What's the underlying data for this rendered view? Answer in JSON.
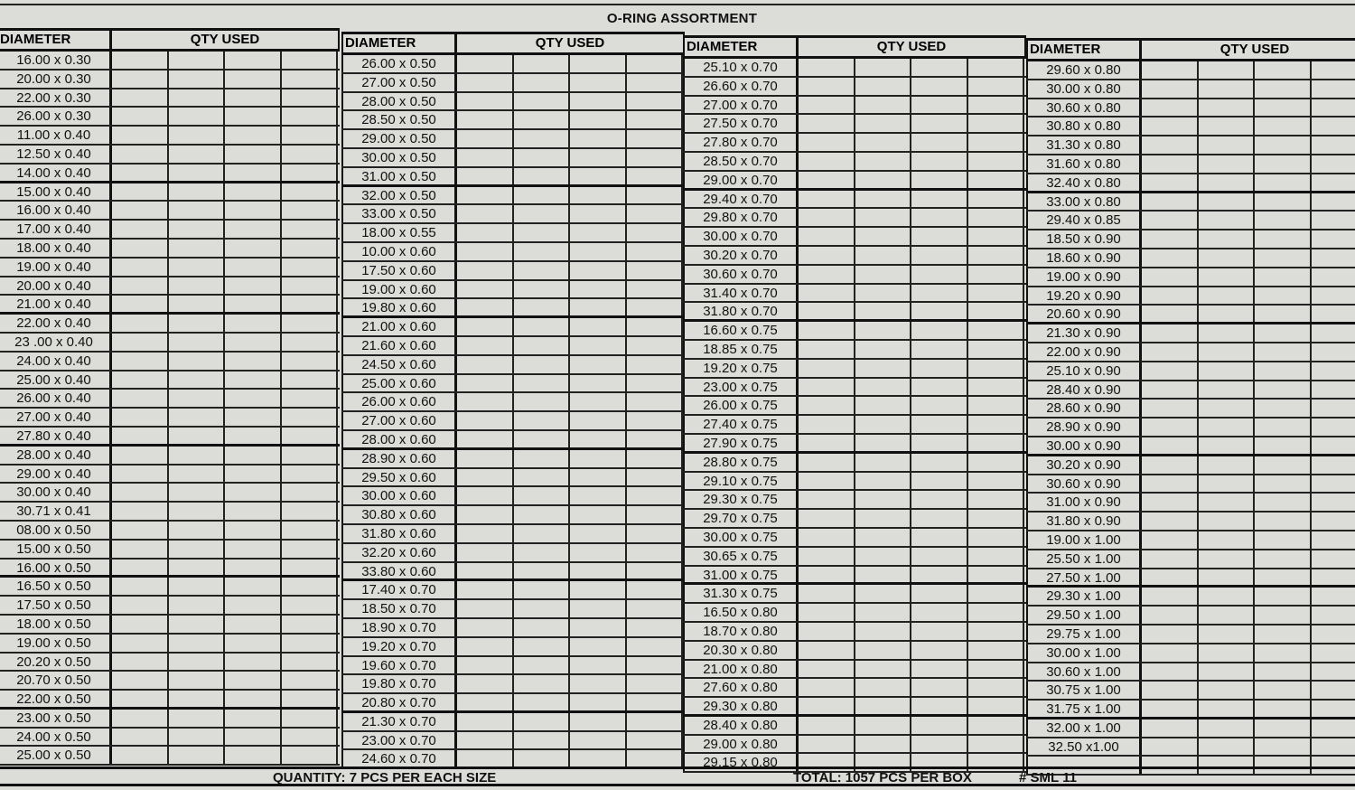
{
  "title": "O-RING ASSORTMENT",
  "header": {
    "diameter": "DIAMETER",
    "qty_used": "QTY USED"
  },
  "columns": [
    [
      "16.00 x 0.30",
      "20.00 x 0.30",
      "22.00 x 0.30",
      "26.00 x 0.30",
      "11.00 x 0.40",
      "12.50 x 0.40",
      "14.00 x 0.40",
      "15.00 x 0.40",
      "16.00 x 0.40",
      "17.00 x 0.40",
      "18.00 x 0.40",
      "19.00 x 0.40",
      "20.00 x 0.40",
      "21.00 x 0.40",
      "22.00 x 0.40",
      "23 .00 x 0.40",
      "24.00 x 0.40",
      "25.00 x 0.40",
      "26.00 x 0.40",
      "27.00 x 0.40",
      "27.80 x 0.40",
      "28.00 x 0.40",
      "29.00 x 0.40",
      "30.00 x 0.40",
      "30.71 x 0.41",
      "08.00 x 0.50",
      "15.00 x 0.50",
      "16.00 x 0.50",
      "16.50 x 0.50",
      "17.50 x 0.50",
      "18.00 x 0.50",
      "19.00 x 0.50",
      "20.20 x 0.50",
      "20.70 x 0.50",
      "22.00 x 0.50",
      "23.00 x 0.50",
      "24.00 x 0.50",
      "25.00 x 0.50"
    ],
    [
      "26.00 x 0.50",
      "27.00 x 0.50",
      "28.00 x 0.50",
      "28.50 x 0.50",
      "29.00 x 0.50",
      "30.00 x 0.50",
      "31.00 x 0.50",
      "32.00 x 0.50",
      "33.00 x 0.50",
      "18.00 x 0.55",
      "10.00 x 0.60",
      "17.50 x 0.60",
      "19.00 x 0.60",
      "19.80 x 0.60",
      "21.00 x 0.60",
      "21.60 x 0.60",
      "24.50 x 0.60",
      "25.00 x 0.60",
      "26.00 x 0.60",
      "27.00 x 0.60",
      "28.00 x 0.60",
      "28.90 x 0.60",
      "29.50 x 0.60",
      "30.00 x 0.60",
      "30.80 x 0.60",
      "31.80 x 0.60",
      "32.20 x 0.60",
      "33.80 x 0.60",
      "17.40 x 0.70",
      "18.50 x 0.70",
      "18.90 x 0.70",
      "19.20 x 0.70",
      "19.60 x 0.70",
      "19.80 x 0.70",
      "20.80 x 0.70",
      "21.30 x 0.70",
      "23.00 x 0.70",
      "24.60 x 0.70"
    ],
    [
      "25.10 x 0.70",
      "26.60 x 0.70",
      "27.00 x 0.70",
      "27.50 x 0.70",
      "27.80 x 0.70",
      "28.50 x 0.70",
      "29.00 x 0.70",
      "29.40 x 0.70",
      "29.80 x 0.70",
      "30.00 x 0.70",
      "30.20 x 0.70",
      "30.60 x 0.70",
      "31.40 x 0.70",
      "31.80 x 0.70",
      "16.60 x 0.75",
      "18.85 x 0.75",
      "19.20 x 0.75",
      "23.00 x 0.75",
      "26.00 x 0.75",
      "27.40 x 0.75",
      "27.90 x 0.75",
      "28.80 x 0.75",
      "29.10 x 0.75",
      "29.30 x 0.75",
      "29.70 x 0.75",
      "30.00 x 0.75",
      "30.65 x 0.75",
      "31.00 x 0.75",
      "31.30 x 0.75",
      "16.50 x 0.80",
      "18.70 x 0.80",
      "20.30 x 0.80",
      "21.00 x 0.80",
      "27.60 x 0.80",
      "29.30 x 0.80",
      "28.40 x 0.80",
      "29.00 x 0.80",
      "29.15 x 0.80"
    ],
    [
      "29.60 x 0.80",
      "30.00 x 0.80",
      "30.60 x 0.80",
      "30.80 x 0.80",
      "31.30 x 0.80",
      "31.60 x 0.80",
      "32.40 x 0.80",
      "33.00 x 0.80",
      "29.40 x 0.85",
      "18.50 x 0.90",
      "18.60 x 0.90",
      "19.00 x 0.90",
      "19.20 x 0.90",
      "20.60 x 0.90",
      "21.30 x 0.90",
      "22.00 x 0.90",
      "25.10 x 0.90",
      "28.40 x 0.90",
      "28.60 x 0.90",
      "28.90 x 0.90",
      "30.00 x 0.90",
      "30.20 x 0.90",
      "30.60 x 0.90",
      "31.00 x 0.90",
      "31.80 x 0.90",
      "19.00 x 1.00",
      "25.50 x 1.00",
      "27.50 x 1.00",
      "29.30 x 1.00",
      "29.50 x 1.00",
      "29.75 x 1.00",
      "30.00 x 1.00",
      "30.60 x 1.00",
      "30.75 x 1.00",
      "31.75 x 1.00",
      "32.00 x 1.00",
      "32.50 x1.00",
      ""
    ]
  ],
  "footer": {
    "quantity": "QUANTITY: 7 PCS PER EACH SIZE",
    "total": "TOTAL: 1057 PCS PER BOX",
    "code": "# SML 11"
  }
}
